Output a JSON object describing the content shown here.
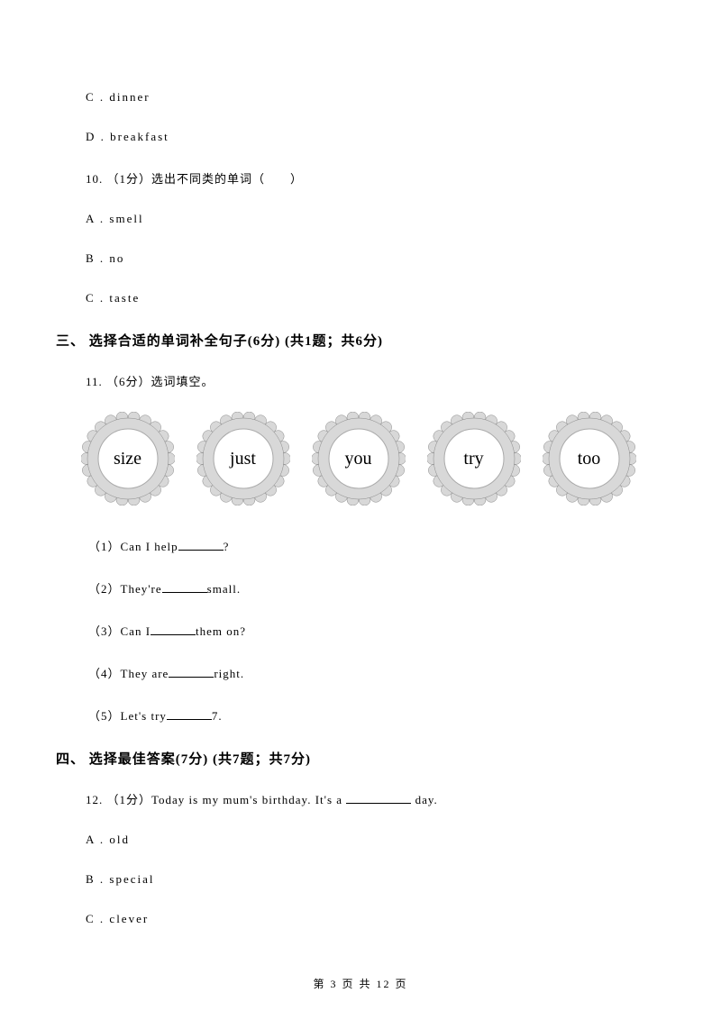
{
  "options_top": {
    "c": "C . dinner",
    "d": "D . breakfast"
  },
  "q10": {
    "line": "10. （1分）选出不同类的单词（　　）",
    "a": "A . smell",
    "b": "B . no",
    "c": "C . taste"
  },
  "section3": {
    "header": "三、 选择合适的单词补全句子(6分) (共1题；共6分)"
  },
  "q11": {
    "line": "11. （6分）选词填空。",
    "badges": [
      "size",
      "just",
      "you",
      "try",
      "too"
    ],
    "sub1_pre": "（1）Can I help",
    "sub1_post": "?",
    "sub2_pre": "（2）They're",
    "sub2_post": "small.",
    "sub3_pre": "（3）Can I",
    "sub3_post": "them on?",
    "sub4_pre": "（4）They are",
    "sub4_post": "right.",
    "sub5_pre": "（5）Let's try",
    "sub5_post": "7."
  },
  "section4": {
    "header": "四、 选择最佳答案(7分) (共7题；共7分)"
  },
  "q12": {
    "line_pre": "12. （1分）Today is my mum's birthday. It's a ",
    "line_post": " day.",
    "a": "A . old",
    "b": "B . special",
    "c": "C . clever"
  },
  "footer": "第 3 页 共 12 页",
  "badge_style": {
    "outer_fill": "#d8d8d8",
    "scallop_stroke": "#888888",
    "inner_fill": "#ffffff",
    "inner_stroke": "#aaaaaa"
  }
}
